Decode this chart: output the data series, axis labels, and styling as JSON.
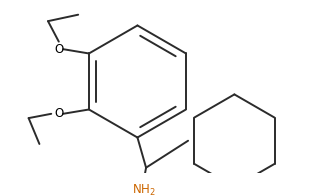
{
  "background_color": "#ffffff",
  "line_color": "#2b2b2b",
  "line_width": 1.4,
  "text_color": "#000000",
  "nh2_color": "#cc6600",
  "font_size": 8.5
}
